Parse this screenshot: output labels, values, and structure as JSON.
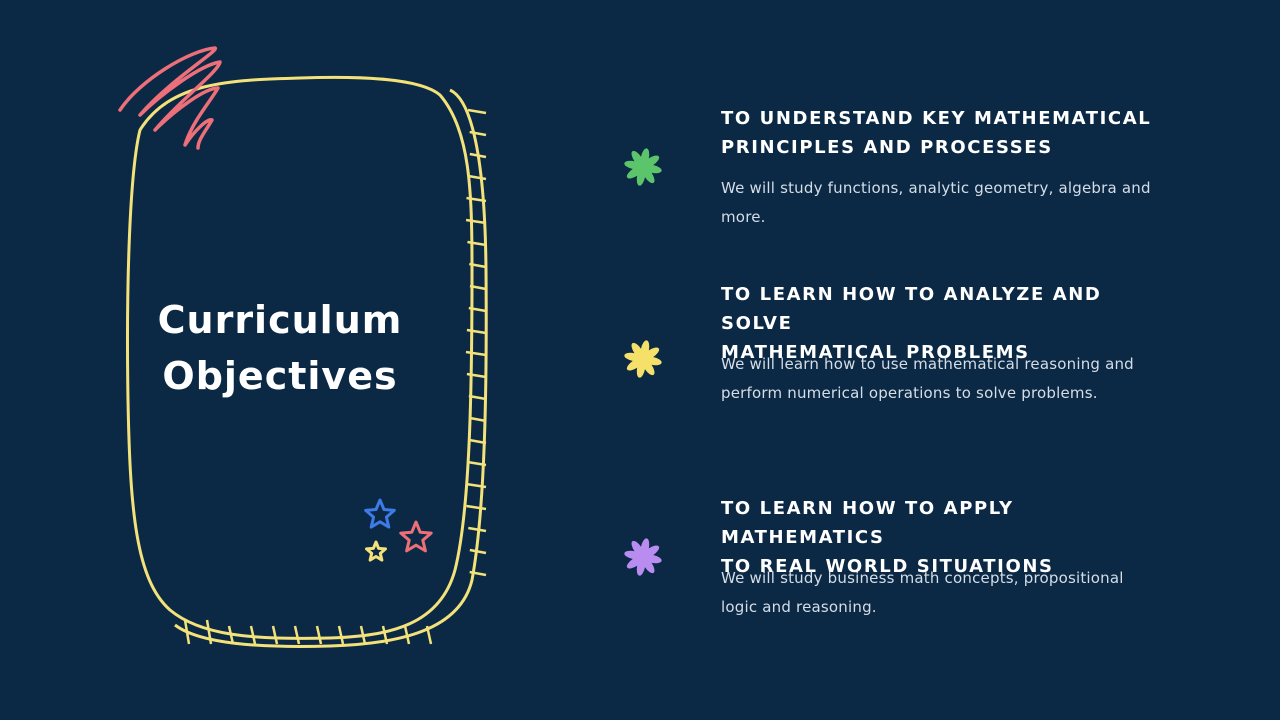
{
  "slide": {
    "title_line1": "Curriculum",
    "title_line2": "Objectives"
  },
  "objectives": [
    {
      "heading_line1": "TO UNDERSTAND KEY MATHEMATICAL",
      "heading_line2": "PRINCIPLES AND PROCESSES",
      "description": "We will study functions, analytic geometry, algebra and more.",
      "bullet_icon": "asterisk-doodle-icon",
      "bullet_color": "#5cc46a"
    },
    {
      "heading_line1": "TO LEARN HOW TO ANALYZE AND SOLVE",
      "heading_line2": "MATHEMATICAL PROBLEMS",
      "description": "We will learn how to use mathematical reasoning and perform numerical operations to solve problems.",
      "bullet_icon": "asterisk-doodle-icon",
      "bullet_color": "#f5e06a"
    },
    {
      "heading_line1": "TO LEARN HOW TO APPLY MATHEMATICS",
      "heading_line2": "TO REAL WORLD SITUATIONS",
      "description": "We will study business math concepts, propositional logic and reasoning.",
      "bullet_icon": "asterisk-doodle-icon",
      "bullet_color": "#b98cf0"
    }
  ],
  "decorations": {
    "frame_color": "#f3e27a",
    "scribble_color": "#ec6f7a",
    "stars": [
      {
        "icon": "star-doodle-icon",
        "color": "#3d7be8"
      },
      {
        "icon": "star-doodle-icon",
        "color": "#ec6f7a"
      },
      {
        "icon": "star-doodle-icon",
        "color": "#f3e27a"
      }
    ]
  }
}
